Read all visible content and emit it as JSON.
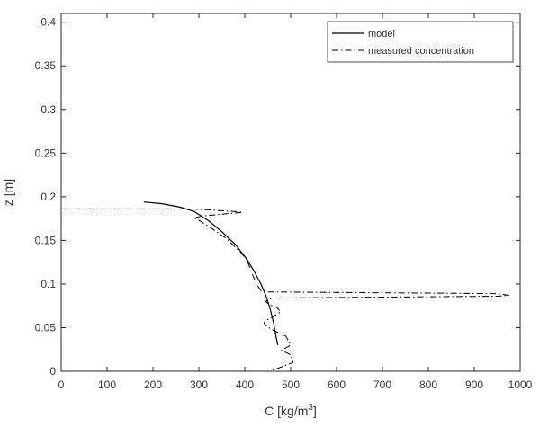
{
  "chart_data": {
    "type": "line",
    "xlabel": "C [kg/m",
    "xlabel_sup": "3",
    "xlabel_suffix": "]",
    "ylabel": "z [m]",
    "xlim": [
      0,
      1000
    ],
    "ylim": [
      0,
      0.41
    ],
    "xticks": [
      0,
      100,
      200,
      300,
      400,
      500,
      600,
      700,
      800,
      900,
      1000
    ],
    "xtick_labels": [
      "0",
      "100",
      "200",
      "300",
      "400",
      "500",
      "600",
      "700",
      "800",
      "900",
      "1000"
    ],
    "yticks": [
      0,
      0.05,
      0.1,
      0.15,
      0.2,
      0.25,
      0.3,
      0.35,
      0.4
    ],
    "ytick_labels": [
      "0",
      "0.05",
      "0.1",
      "0.15",
      "0.2",
      "0.25",
      "0.3",
      "0.35",
      "0.4"
    ],
    "grid": false,
    "legend_position": "top-right",
    "series": [
      {
        "name": "model",
        "line_style": "solid",
        "color": "#000000",
        "x": [
          180,
          220,
          260,
          290,
          320,
          350,
          380,
          405,
          420,
          435,
          445,
          455,
          463,
          468,
          472
        ],
        "y": [
          0.194,
          0.192,
          0.188,
          0.183,
          0.173,
          0.16,
          0.145,
          0.128,
          0.115,
          0.1,
          0.088,
          0.072,
          0.055,
          0.04,
          0.03
        ]
      },
      {
        "name": "measured concentration",
        "line_style": "dashdot",
        "color": "#000000",
        "x": [
          0,
          100,
          200,
          280,
          320,
          380,
          395,
          350,
          310,
          290,
          300,
          330,
          360,
          390,
          405,
          410,
          415,
          420,
          425,
          432,
          436,
          440,
          950,
          975,
          950,
          460,
          445,
          455,
          470,
          478,
          460,
          445,
          442,
          447,
          458,
          470,
          490,
          500,
          480,
          500,
          505,
          480,
          455
        ],
        "y": [
          0.186,
          0.186,
          0.186,
          0.186,
          0.185,
          0.183,
          0.182,
          0.18,
          0.178,
          0.176,
          0.173,
          0.163,
          0.152,
          0.137,
          0.127,
          0.12,
          0.113,
          0.107,
          0.1,
          0.095,
          0.092,
          0.091,
          0.089,
          0.087,
          0.086,
          0.084,
          0.08,
          0.076,
          0.073,
          0.068,
          0.062,
          0.058,
          0.055,
          0.052,
          0.048,
          0.045,
          0.04,
          0.03,
          0.024,
          0.019,
          0.01,
          0.005,
          0.0
        ]
      }
    ]
  }
}
